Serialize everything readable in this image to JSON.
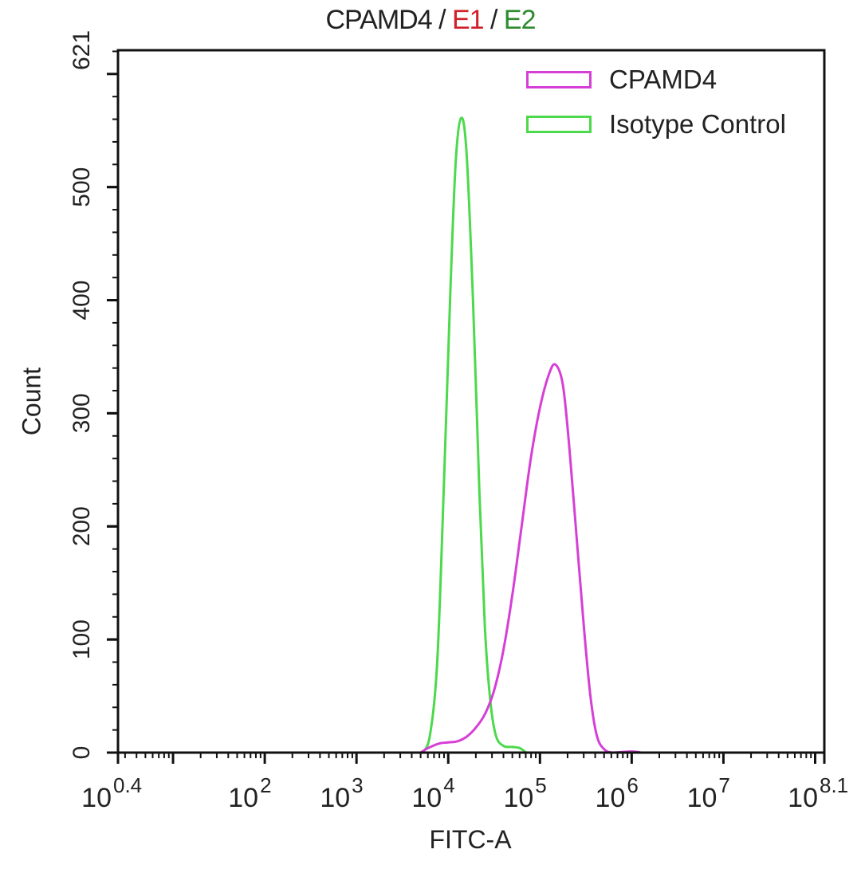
{
  "chart_data": {
    "type": "line",
    "title": "CPAMD4 / E1 / E2",
    "title_parts": [
      {
        "text": "CPAMD4 / ",
        "color": "#222222"
      },
      {
        "text": "E1",
        "color": "#d0202a"
      },
      {
        "text": " / ",
        "color": "#222222"
      },
      {
        "text": "E2",
        "color": "#2e8b2e"
      }
    ],
    "xlabel": "FITC-A",
    "ylabel": "Count",
    "xscale": "log",
    "xlim_log10": [
      0.4,
      8.1
    ],
    "ylim": [
      0,
      621
    ],
    "x_ticks": [
      {
        "exp": "0.4",
        "log10": 0.4
      },
      {
        "exp": "2",
        "log10": 2
      },
      {
        "exp": "3",
        "log10": 3
      },
      {
        "exp": "4",
        "log10": 4
      },
      {
        "exp": "5",
        "log10": 5
      },
      {
        "exp": "6",
        "log10": 6
      },
      {
        "exp": "7",
        "log10": 7
      },
      {
        "exp": "8.1",
        "log10": 8.1
      }
    ],
    "y_ticks": [
      0,
      100,
      200,
      300,
      400,
      500,
      621
    ],
    "grid": false,
    "legend_position": "top-right",
    "series": [
      {
        "name": "CPAMD4",
        "color": "#d63fd6",
        "points_log10x": [
          [
            3.7,
            0
          ],
          [
            3.78,
            4
          ],
          [
            3.9,
            8
          ],
          [
            4.0,
            9
          ],
          [
            4.1,
            10
          ],
          [
            4.2,
            14
          ],
          [
            4.3,
            22
          ],
          [
            4.4,
            34
          ],
          [
            4.5,
            55
          ],
          [
            4.6,
            90
          ],
          [
            4.7,
            140
          ],
          [
            4.8,
            200
          ],
          [
            4.9,
            260
          ],
          [
            5.0,
            305
          ],
          [
            5.1,
            335
          ],
          [
            5.17,
            343
          ],
          [
            5.25,
            325
          ],
          [
            5.32,
            270
          ],
          [
            5.4,
            190
          ],
          [
            5.48,
            110
          ],
          [
            5.55,
            50
          ],
          [
            5.62,
            15
          ],
          [
            5.7,
            3
          ],
          [
            5.8,
            0
          ],
          [
            6.0,
            1
          ],
          [
            6.1,
            0
          ]
        ]
      },
      {
        "name": "Isotype Control",
        "color": "#4cd94c",
        "points_log10x": [
          [
            3.72,
            0
          ],
          [
            3.8,
            15
          ],
          [
            3.88,
            80
          ],
          [
            3.95,
            230
          ],
          [
            4.02,
            400
          ],
          [
            4.08,
            520
          ],
          [
            4.14,
            561
          ],
          [
            4.2,
            530
          ],
          [
            4.27,
            400
          ],
          [
            4.34,
            230
          ],
          [
            4.4,
            110
          ],
          [
            4.46,
            45
          ],
          [
            4.52,
            15
          ],
          [
            4.6,
            6
          ],
          [
            4.7,
            5
          ],
          [
            4.78,
            4
          ],
          [
            4.85,
            0
          ]
        ]
      }
    ]
  }
}
